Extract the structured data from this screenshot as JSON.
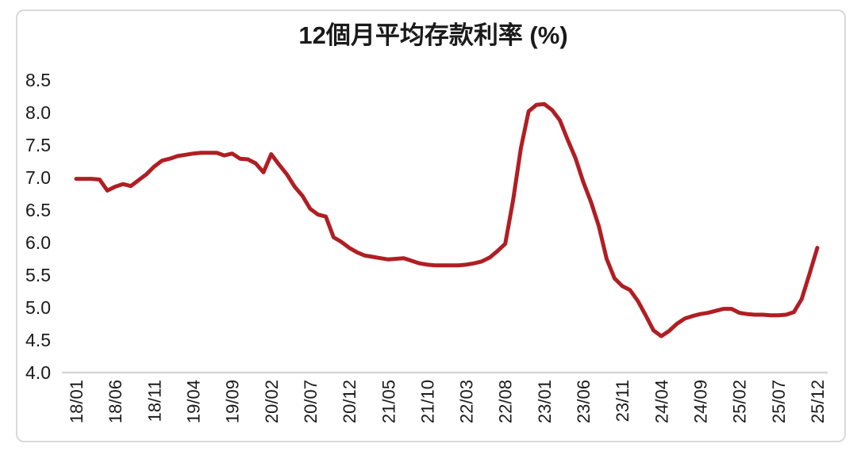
{
  "page": {
    "background_color": "#ffffff",
    "card_border_color": "#d9d9d9"
  },
  "chart_data": {
    "type": "line",
    "title": "12個月平均存款利率 (%)",
    "xlabel": "",
    "ylabel": "",
    "ylim": [
      4.0,
      8.5
    ],
    "grid": "off",
    "legend": "none",
    "text_color": "#1a1a1a",
    "axis_line_color": "#d6d6d6",
    "y_tick_labels": [
      "8.5",
      "8.0",
      "7.5",
      "7.0",
      "6.5",
      "6.0",
      "5.5",
      "5.0",
      "4.5",
      "4.0"
    ],
    "x_tick_interval": 5,
    "x_tick_labels": [
      "18/01",
      "18/06",
      "18/11",
      "19/04",
      "19/09",
      "20/02",
      "20/07",
      "20/12",
      "21/05",
      "21/10",
      "22/03",
      "22/08",
      "23/01",
      "23/06",
      "23/11",
      "24/04",
      "24/09",
      "25/02",
      "25/07",
      "25/12"
    ],
    "x": [
      "18/01",
      "18/02",
      "18/03",
      "18/04",
      "18/05",
      "18/06",
      "18/07",
      "18/08",
      "18/09",
      "18/10",
      "18/11",
      "18/12",
      "19/01",
      "19/02",
      "19/03",
      "19/04",
      "19/05",
      "19/06",
      "19/07",
      "19/08",
      "19/09",
      "19/10",
      "19/11",
      "19/12",
      "20/01",
      "20/02",
      "20/03",
      "20/04",
      "20/05",
      "20/06",
      "20/07",
      "20/08",
      "20/09",
      "20/10",
      "20/11",
      "20/12",
      "21/01",
      "21/02",
      "21/03",
      "21/04",
      "21/05",
      "21/06",
      "21/07",
      "21/08",
      "21/09",
      "21/10",
      "21/11",
      "21/12",
      "22/01",
      "22/02",
      "22/03",
      "22/04",
      "22/05",
      "22/06",
      "22/07",
      "22/08",
      "22/09",
      "22/10",
      "22/11",
      "22/12",
      "23/01",
      "23/02",
      "23/03",
      "23/04",
      "23/05",
      "23/06",
      "23/07",
      "23/08",
      "23/09",
      "23/10",
      "23/11",
      "23/12",
      "24/01",
      "24/02",
      "24/03",
      "24/04",
      "24/05",
      "24/06",
      "24/07",
      "24/08",
      "24/09",
      "24/10",
      "24/11",
      "24/12",
      "25/01",
      "25/02",
      "25/03",
      "25/04",
      "25/05",
      "25/06",
      "25/07",
      "25/08",
      "25/09",
      "25/10",
      "25/11",
      "25/12"
    ],
    "series": [
      {
        "name": "12個月平均存款利率",
        "color": "#b01e23",
        "values": [
          6.98,
          6.98,
          6.98,
          6.97,
          6.8,
          6.86,
          6.9,
          6.87,
          6.96,
          7.05,
          7.17,
          7.26,
          7.29,
          7.33,
          7.35,
          7.37,
          7.38,
          7.38,
          7.38,
          7.34,
          7.37,
          7.29,
          7.28,
          7.22,
          7.08,
          7.36,
          7.2,
          7.05,
          6.86,
          6.72,
          6.52,
          6.43,
          6.4,
          6.08,
          6.01,
          5.92,
          5.85,
          5.8,
          5.78,
          5.76,
          5.74,
          5.75,
          5.76,
          5.72,
          5.68,
          5.66,
          5.65,
          5.65,
          5.65,
          5.65,
          5.66,
          5.68,
          5.71,
          5.77,
          5.87,
          5.98,
          6.65,
          7.45,
          8.02,
          8.12,
          8.13,
          8.04,
          7.88,
          7.58,
          7.3,
          6.93,
          6.62,
          6.25,
          5.75,
          5.45,
          5.33,
          5.27,
          5.1,
          4.88,
          4.65,
          4.56,
          4.64,
          4.75,
          4.83,
          4.87,
          4.9,
          4.92,
          4.95,
          4.98,
          4.98,
          4.92,
          4.9,
          4.89,
          4.89,
          4.88,
          4.88,
          4.89,
          4.93,
          5.13,
          5.52,
          5.92
        ]
      }
    ]
  }
}
